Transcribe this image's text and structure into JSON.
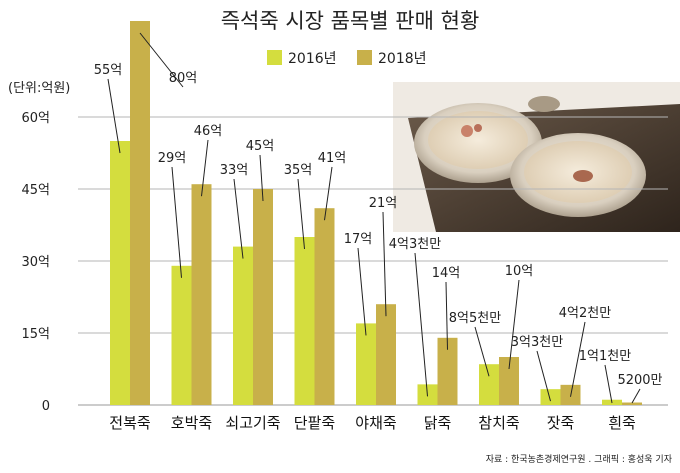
{
  "chart_data": {
    "type": "bar",
    "title": "즉석죽 시장 품목별 판매 현황",
    "unit_label": "(단위:억원)",
    "ylim": [
      0,
      80
    ],
    "yticks": [
      0,
      15,
      30,
      45,
      60
    ],
    "ytick_labels": [
      "0",
      "15억",
      "30억",
      "45억",
      "60억"
    ],
    "grid": true,
    "legend_position": "top-center",
    "categories": [
      "전복죽",
      "호박죽",
      "쇠고기죽",
      "단팥죽",
      "야채죽",
      "닭죽",
      "참치죽",
      "잣죽",
      "흰죽"
    ],
    "series": [
      {
        "name": "2016년",
        "color": "#d4dd3e",
        "values": [
          55,
          29,
          33,
          35,
          17,
          4.3,
          8.5,
          3.3,
          1.1
        ],
        "labels": [
          "55억",
          "29억",
          "33억",
          "35억",
          "17억",
          "4억3천만",
          "8억5천만",
          "3억3천만",
          "1억1천만"
        ]
      },
      {
        "name": "2018년",
        "color": "#c8b04a",
        "values": [
          80,
          46,
          45,
          41,
          21,
          14,
          10,
          4.2,
          0.52
        ],
        "labels": [
          "80억",
          "46억",
          "45억",
          "41억",
          "21억",
          "14억",
          "10억",
          "4억2천만",
          "5200만"
        ]
      }
    ],
    "source": "자료 : 한국농촌경제연구원 . 그래픽 : 홍성욱 기자"
  }
}
